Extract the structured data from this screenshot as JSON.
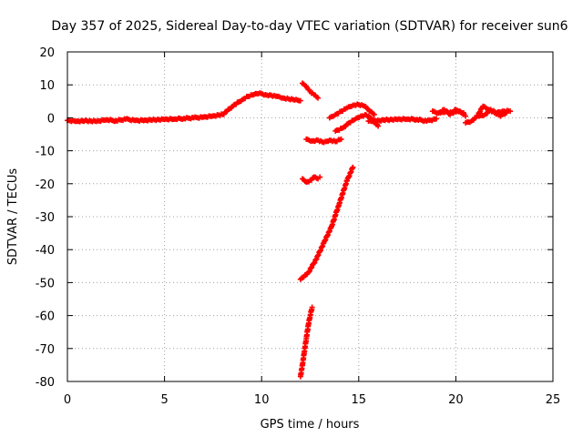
{
  "chart_data": {
    "type": "scatter",
    "title": "Day 357 of 2025, Sidereal Day-to-day VTEC variation (SDTVAR) for receiver sun6",
    "xlabel": "GPS time / hours",
    "ylabel": "SDTVAR / TECUs",
    "xlim": [
      0,
      25
    ],
    "ylim": [
      -80,
      20
    ],
    "xticks": [
      0,
      5,
      10,
      15,
      20,
      25
    ],
    "yticks": [
      20,
      10,
      0,
      -10,
      -20,
      -30,
      -40,
      -50,
      -60,
      -70,
      -80
    ],
    "xtick_labels": [
      "0",
      "5",
      "10",
      "15",
      "20",
      "25"
    ],
    "ytick_labels": [
      "20",
      "10",
      "0",
      "-10",
      "-20",
      "-30",
      "-40",
      "-50",
      "-60",
      "-70",
      "-80"
    ],
    "grid": true,
    "marker": "+",
    "color": "#ff0000",
    "series": [
      {
        "name": "main-trace",
        "x": [
          0.0,
          0.5,
          1.0,
          1.5,
          2.0,
          2.5,
          3.0,
          3.5,
          4.0,
          4.5,
          5.0,
          5.5,
          6.0,
          6.5,
          7.0,
          7.5,
          8.0,
          8.5,
          9.0,
          9.3,
          9.6,
          9.9,
          10.2,
          10.5,
          10.8,
          11.1,
          11.4,
          11.7,
          12.0
        ],
        "y": [
          -0.8,
          -1.0,
          -0.9,
          -1.1,
          -0.6,
          -0.9,
          -0.4,
          -0.8,
          -0.7,
          -0.6,
          -0.5,
          -0.4,
          -0.2,
          0.0,
          0.2,
          0.6,
          1.0,
          3.5,
          5.5,
          6.5,
          7.0,
          7.5,
          7.0,
          6.8,
          6.5,
          6.0,
          5.7,
          5.4,
          5.2
        ]
      },
      {
        "name": "arc-12-13",
        "x": [
          12.1,
          12.3,
          12.5,
          12.7,
          12.9
        ],
        "y": [
          10.5,
          9.5,
          8.0,
          7.0,
          6.0
        ]
      },
      {
        "name": "arc-14-15-upper",
        "x": [
          13.5,
          13.8,
          14.1,
          14.4,
          14.7,
          15.0,
          15.3,
          15.6,
          15.8
        ],
        "y": [
          0.0,
          1.0,
          2.0,
          3.0,
          3.8,
          4.0,
          3.5,
          2.0,
          1.0
        ]
      },
      {
        "name": "arc-14-16-lower",
        "x": [
          13.8,
          14.2,
          14.5,
          14.8,
          15.1,
          15.4,
          15.7,
          16.0
        ],
        "y": [
          -4.0,
          -3.0,
          -1.5,
          -0.5,
          0.5,
          0.8,
          -0.5,
          -2.5
        ]
      },
      {
        "name": "arc-15-19",
        "x": [
          15.5,
          16.0,
          16.5,
          17.0,
          17.5,
          18.0,
          18.5,
          19.0
        ],
        "y": [
          -1.0,
          -0.8,
          -0.6,
          -0.5,
          -0.4,
          -0.5,
          -1.0,
          -0.3
        ]
      },
      {
        "name": "arc-18-20",
        "x": [
          18.8,
          19.1,
          19.4,
          19.7,
          20.0,
          20.3,
          20.5
        ],
        "y": [
          2.0,
          1.5,
          2.5,
          1.0,
          2.5,
          1.5,
          0.5
        ]
      },
      {
        "name": "arc-19-20-b",
        "x": [
          19.2,
          19.5,
          19.8,
          20.1,
          20.4
        ],
        "y": [
          1.5,
          2.0,
          1.5,
          2.0,
          1.5
        ]
      },
      {
        "name": "arc-20-22",
        "x": [
          20.5,
          20.8,
          21.1,
          21.4,
          21.7,
          22.0,
          22.3,
          22.6
        ],
        "y": [
          -1.5,
          -1.0,
          0.5,
          3.5,
          2.5,
          1.5,
          0.5,
          1.5
        ]
      },
      {
        "name": "arc-21-23",
        "x": [
          21.2,
          21.5,
          21.8,
          22.1,
          22.4,
          22.8
        ],
        "y": [
          0.5,
          1.0,
          2.5,
          1.5,
          2.0,
          2.0
        ]
      },
      {
        "name": "arc-12-14-minus7",
        "x": [
          12.3,
          12.6,
          12.9,
          13.2,
          13.5,
          13.8,
          14.1
        ],
        "y": [
          -6.5,
          -7.0,
          -6.8,
          -7.5,
          -6.8,
          -7.2,
          -6.5
        ]
      },
      {
        "name": "arc-12-13-minus19",
        "x": [
          12.1,
          12.3,
          12.5,
          12.7,
          12.9,
          13.0
        ],
        "y": [
          -18.5,
          -19.5,
          -19.0,
          -18.0,
          -18.5,
          -18.0
        ]
      },
      {
        "name": "arc-12-15-steep",
        "x": [
          12.0,
          12.4,
          12.8,
          13.2,
          13.6,
          14.0,
          14.4,
          14.7
        ],
        "y": [
          -49.0,
          -47.0,
          -43.0,
          -38.0,
          -33.0,
          -26.0,
          -19.0,
          -15.0
        ]
      },
      {
        "name": "arc-12-13-bottom",
        "x": [
          12.0,
          12.1,
          12.2,
          12.3,
          12.4,
          12.5,
          12.6
        ],
        "y": [
          -78.5,
          -75.0,
          -71.0,
          -67.0,
          -63.0,
          -60.0,
          -57.5
        ]
      }
    ]
  }
}
